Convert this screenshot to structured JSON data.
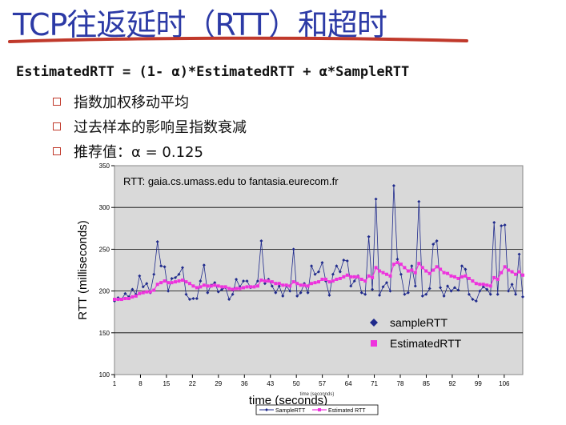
{
  "slide": {
    "title": "TCP往返延时（RTT）和超时",
    "formula": "EstimatedRTT = (1- α)*EstimatedRTT + α*SampleRTT",
    "bullets": [
      "指数加权移动平均",
      "过去样本的影响呈指数衰减",
      "推荐值：α = 0.125"
    ],
    "colors": {
      "title": "#2c3aa6",
      "underline": "#c0392b",
      "bullet_box": "#c0392b"
    }
  },
  "chart_data": {
    "type": "line",
    "title": "RTT: gaia.cs.umass.edu to fantasia.eurecom.fr",
    "xlabel": "time (seconds)",
    "xlabel_small": "time (seconnds)",
    "ylabel": "RTT (milliseconds)",
    "ylim": [
      100,
      350
    ],
    "yticks": [
      100,
      150,
      200,
      250,
      300,
      350
    ],
    "xlim": [
      1,
      111
    ],
    "xticks": [
      1,
      8,
      15,
      22,
      29,
      36,
      43,
      50,
      57,
      64,
      71,
      78,
      85,
      92,
      99,
      106
    ],
    "grid": "horizontal",
    "plot_bg": "#d9d9d9",
    "legend_placement": "lower-right",
    "legend_entries": [
      "sampleRTT",
      "EstimatedRTT"
    ],
    "bottom_legend_entries": [
      "SampleRTT",
      "Estimated RTT"
    ],
    "series": [
      {
        "name": "sampleRTT",
        "color": "#1f2a8c",
        "marker": "diamond",
        "values": [
          188,
          192,
          190,
          197,
          193,
          202,
          196,
          218,
          205,
          209,
          198,
          220,
          259,
          230,
          229,
          200,
          215,
          216,
          220,
          228,
          196,
          190,
          191,
          191,
          212,
          231,
          198,
          207,
          210,
          199,
          202,
          204,
          190,
          196,
          214,
          205,
          212,
          212,
          204,
          205,
          212,
          260,
          209,
          214,
          206,
          198,
          206,
          194,
          206,
          200,
          250,
          194,
          198,
          209,
          198,
          230,
          220,
          223,
          234,
          212,
          195,
          220,
          230,
          223,
          237,
          236,
          206,
          212,
          218,
          198,
          196,
          265,
          202,
          310,
          195,
          205,
          210,
          200,
          326,
          238,
          220,
          196,
          198,
          230,
          206,
          307,
          194,
          196,
          203,
          256,
          260,
          204,
          194,
          206,
          200,
          204,
          201,
          230,
          226,
          196,
          190,
          188,
          200,
          205,
          202,
          196,
          282,
          196,
          278,
          279,
          200,
          208,
          196,
          244,
          193
        ]
      },
      {
        "name": "EstimatedRTT",
        "color": "#ee33dd",
        "marker": "square",
        "values": [
          190,
          190,
          190,
          191,
          191,
          193,
          194,
          197,
          198,
          199,
          199,
          201,
          208,
          210,
          212,
          210,
          210,
          211,
          212,
          213,
          211,
          209,
          206,
          204,
          205,
          207,
          206,
          206,
          207,
          206,
          205,
          205,
          203,
          202,
          203,
          203,
          204,
          205,
          205,
          205,
          206,
          213,
          212,
          212,
          211,
          209,
          209,
          207,
          207,
          206,
          211,
          209,
          207,
          207,
          206,
          209,
          210,
          211,
          214,
          214,
          211,
          212,
          214,
          215,
          217,
          219,
          217,
          217,
          217,
          214,
          212,
          218,
          216,
          228,
          224,
          222,
          220,
          218,
          232,
          234,
          232,
          228,
          224,
          225,
          222,
          233,
          228,
          224,
          221,
          225,
          229,
          226,
          222,
          221,
          218,
          217,
          215,
          217,
          218,
          215,
          212,
          209,
          208,
          208,
          207,
          206,
          216,
          214,
          222,
          229,
          225,
          223,
          220,
          223,
          219
        ]
      }
    ]
  }
}
